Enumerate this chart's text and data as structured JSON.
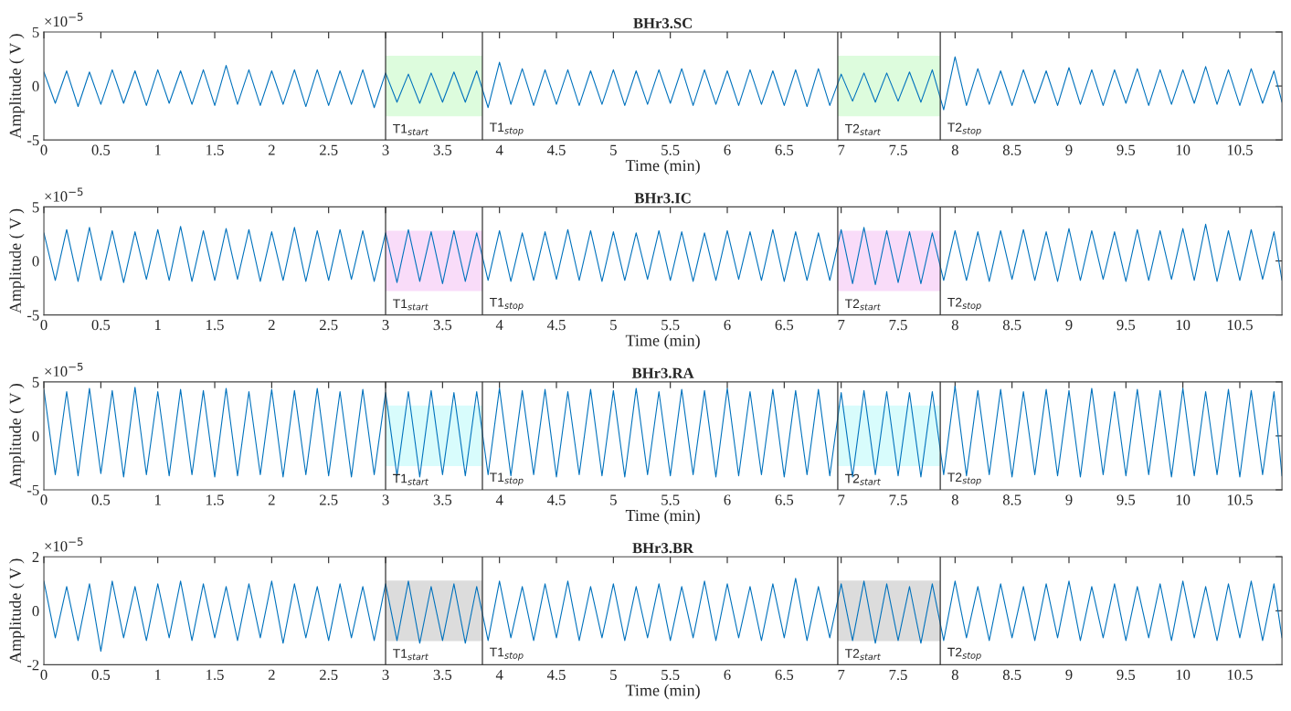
{
  "chart_data": [
    {
      "type": "line",
      "title": "BHr3.SC",
      "xlabel": "Time (min)",
      "ylabel": "Amplitude ( V )",
      "annotations": [
        "×10$^{−5}$"
      ],
      "x": [
        0,
        0.1,
        0.2,
        0.3,
        0.4,
        0.5,
        0.6,
        0.7,
        0.8,
        0.9,
        1.0,
        1.1,
        1.2,
        1.3,
        1.4,
        1.5,
        1.6,
        1.7,
        1.8,
        1.9,
        2.0,
        2.1,
        2.2,
        2.3,
        2.4,
        2.5,
        2.6,
        2.7,
        2.8,
        2.9,
        3.0,
        3.1,
        3.2,
        3.3,
        3.4,
        3.5,
        3.6,
        3.7,
        3.8,
        3.9,
        4.0,
        4.1,
        4.2,
        4.3,
        4.4,
        4.5,
        4.6,
        4.7,
        4.8,
        4.9,
        5.0,
        5.1,
        5.2,
        5.3,
        5.4,
        5.5,
        5.6,
        5.7,
        5.8,
        5.9,
        6.0,
        6.1,
        6.2,
        6.3,
        6.4,
        6.5,
        6.6,
        6.7,
        6.8,
        6.9,
        7.0,
        7.1,
        7.2,
        7.3,
        7.4,
        7.5,
        7.6,
        7.7,
        7.8,
        7.9,
        8.0,
        8.1,
        8.2,
        8.3,
        8.4,
        8.5,
        8.6,
        8.7,
        8.8,
        8.9,
        9.0,
        9.1,
        9.2,
        9.3,
        9.4,
        9.5,
        9.6,
        9.7,
        9.8,
        9.9,
        10.0,
        10.1,
        10.2,
        10.3,
        10.4,
        10.5,
        10.6,
        10.7,
        10.8,
        10.87
      ],
      "series": [
        {
          "color": "#0072bd",
          "values": [
            1.3,
            -1.6,
            1.4,
            -1.9,
            1.3,
            -1.7,
            1.5,
            -1.6,
            1.4,
            -1.8,
            1.5,
            -1.6,
            1.4,
            -1.7,
            1.5,
            -1.8,
            1.9,
            -1.7,
            1.5,
            -1.8,
            1.4,
            -1.7,
            1.5,
            -1.9,
            1.5,
            -1.8,
            1.4,
            -1.7,
            1.5,
            -2.0,
            1.2,
            -1.5,
            1.1,
            -1.6,
            1.2,
            -1.5,
            1.3,
            -1.5,
            1.4,
            -2.0,
            2.2,
            -1.7,
            1.6,
            -1.8,
            1.5,
            -1.7,
            1.5,
            -1.8,
            1.4,
            -1.7,
            1.5,
            -1.8,
            1.4,
            -1.7,
            1.5,
            -1.6,
            1.6,
            -1.8,
            1.5,
            -1.7,
            1.4,
            -1.8,
            1.5,
            -1.7,
            1.4,
            -1.8,
            1.5,
            -1.9,
            1.6,
            -1.8,
            1.1,
            -1.4,
            1.2,
            -1.5,
            1.2,
            -1.4,
            1.3,
            -1.5,
            1.5,
            -2.2,
            2.7,
            -1.8,
            1.6,
            -1.7,
            1.4,
            -1.8,
            1.5,
            -1.6,
            1.4,
            -1.8,
            1.7,
            -1.7,
            1.5,
            -1.8,
            1.5,
            -1.6,
            1.6,
            -1.8,
            1.5,
            -1.7,
            1.5,
            -1.6,
            1.8,
            -1.7,
            1.5,
            -1.8,
            1.6,
            -1.6,
            1.4,
            -1.5
          ]
        }
      ],
      "xlim": [
        0,
        10.87
      ],
      "xticks": [
        0,
        0.5,
        1,
        1.5,
        2,
        2.5,
        3,
        3.5,
        4,
        4.5,
        5,
        5.5,
        6,
        6.5,
        7,
        7.5,
        8,
        8.5,
        9,
        9.5,
        10,
        10.5
      ],
      "ylim": [
        -5,
        5
      ],
      "yticks": [
        -5,
        0,
        5
      ],
      "bands": [
        {
          "axis": "x",
          "from": 3.0,
          "to": 3.85,
          "color": "#ddfcdd"
        },
        {
          "axis": "x",
          "from": 6.97,
          "to": 7.87,
          "color": "#ddfcdd"
        }
      ],
      "ref_lines": [
        {
          "axis": "x",
          "value": 3.0,
          "label": "T1$_{start}$"
        },
        {
          "axis": "x",
          "value": 3.85,
          "label": "T1$_{stop}$"
        },
        {
          "axis": "x",
          "value": 6.97,
          "label": "T2$_{start}$"
        },
        {
          "axis": "x",
          "value": 7.87,
          "label": "T2$_{stop}$"
        }
      ]
    },
    {
      "type": "line",
      "title": "BHr3.IC",
      "xlabel": "Time (min)",
      "ylabel": "Amplitude ( V )",
      "annotations": [
        "×10$^{−5}$"
      ],
      "x": [
        0,
        0.1,
        0.2,
        0.3,
        0.4,
        0.5,
        0.6,
        0.7,
        0.8,
        0.9,
        1.0,
        1.1,
        1.2,
        1.3,
        1.4,
        1.5,
        1.6,
        1.7,
        1.8,
        1.9,
        2.0,
        2.1,
        2.2,
        2.3,
        2.4,
        2.5,
        2.6,
        2.7,
        2.8,
        2.9,
        3.0,
        3.1,
        3.2,
        3.3,
        3.4,
        3.5,
        3.6,
        3.7,
        3.8,
        3.9,
        4.0,
        4.1,
        4.2,
        4.3,
        4.4,
        4.5,
        4.6,
        4.7,
        4.8,
        4.9,
        5.0,
        5.1,
        5.2,
        5.3,
        5.4,
        5.5,
        5.6,
        5.7,
        5.8,
        5.9,
        6.0,
        6.1,
        6.2,
        6.3,
        6.4,
        6.5,
        6.6,
        6.7,
        6.8,
        6.9,
        7.0,
        7.1,
        7.2,
        7.3,
        7.4,
        7.5,
        7.6,
        7.7,
        7.8,
        7.9,
        8.0,
        8.1,
        8.2,
        8.3,
        8.4,
        8.5,
        8.6,
        8.7,
        8.8,
        8.9,
        9.0,
        9.1,
        9.2,
        9.3,
        9.4,
        9.5,
        9.6,
        9.7,
        9.8,
        9.9,
        10.0,
        10.1,
        10.2,
        10.3,
        10.4,
        10.5,
        10.6,
        10.7,
        10.8,
        10.87
      ],
      "series": [
        {
          "color": "#0072bd",
          "values": [
            2.6,
            -1.8,
            2.9,
            -1.9,
            3.1,
            -1.8,
            2.8,
            -2.0,
            2.7,
            -1.7,
            2.9,
            -1.8,
            3.2,
            -1.9,
            2.8,
            -1.8,
            3.0,
            -1.7,
            2.9,
            -1.9,
            2.7,
            -1.8,
            3.1,
            -1.9,
            2.8,
            -1.8,
            2.9,
            -1.7,
            2.8,
            -1.9,
            2.6,
            -2.0,
            2.9,
            -1.9,
            2.7,
            -2.1,
            2.8,
            -1.9,
            2.6,
            -1.8,
            2.8,
            -1.9,
            2.6,
            -1.8,
            2.7,
            -1.7,
            2.9,
            -1.8,
            2.8,
            -1.9,
            2.7,
            -1.8,
            2.6,
            -1.7,
            2.8,
            -1.8,
            2.7,
            -1.9,
            2.6,
            -1.8,
            2.8,
            -1.7,
            2.7,
            -1.8,
            2.9,
            -1.9,
            2.7,
            -1.8,
            2.6,
            -1.8,
            2.9,
            -2.1,
            3.1,
            -2.2,
            2.8,
            -2.0,
            2.7,
            -2.1,
            2.6,
            -1.8,
            2.8,
            -1.8,
            2.7,
            -1.9,
            2.8,
            -1.7,
            2.9,
            -1.8,
            2.7,
            -1.9,
            3.0,
            -1.8,
            2.8,
            -1.7,
            2.7,
            -1.9,
            2.9,
            -1.8,
            2.8,
            -1.7,
            3.0,
            -1.8,
            3.4,
            -1.9,
            2.8,
            -1.8,
            2.9,
            -1.7,
            2.7,
            -1.8
          ]
        }
      ],
      "xlim": [
        0,
        10.87
      ],
      "xticks": [
        0,
        0.5,
        1,
        1.5,
        2,
        2.5,
        3,
        3.5,
        4,
        4.5,
        5,
        5.5,
        6,
        6.5,
        7,
        7.5,
        8,
        8.5,
        9,
        9.5,
        10,
        10.5
      ],
      "ylim": [
        -5,
        5
      ],
      "yticks": [
        -5,
        0,
        5
      ],
      "bands": [
        {
          "axis": "x",
          "from": 3.0,
          "to": 3.85,
          "color": "#f9dcf9"
        },
        {
          "axis": "x",
          "from": 6.97,
          "to": 7.87,
          "color": "#f9dcf9"
        }
      ],
      "ref_lines": [
        {
          "axis": "x",
          "value": 3.0,
          "label": "T1$_{start}$"
        },
        {
          "axis": "x",
          "value": 3.85,
          "label": "T1$_{stop}$"
        },
        {
          "axis": "x",
          "value": 6.97,
          "label": "T2$_{start}$"
        },
        {
          "axis": "x",
          "value": 7.87,
          "label": "T2$_{stop}$"
        }
      ]
    },
    {
      "type": "line",
      "title": "BHr3.RA",
      "xlabel": "Time (min)",
      "ylabel": "Amplitude ( V )",
      "annotations": [
        "×10$^{−5}$"
      ],
      "x": [
        0,
        0.1,
        0.2,
        0.3,
        0.4,
        0.5,
        0.6,
        0.7,
        0.8,
        0.9,
        1.0,
        1.1,
        1.2,
        1.3,
        1.4,
        1.5,
        1.6,
        1.7,
        1.8,
        1.9,
        2.0,
        2.1,
        2.2,
        2.3,
        2.4,
        2.5,
        2.6,
        2.7,
        2.8,
        2.9,
        3.0,
        3.1,
        3.2,
        3.3,
        3.4,
        3.5,
        3.6,
        3.7,
        3.8,
        3.9,
        4.0,
        4.1,
        4.2,
        4.3,
        4.4,
        4.5,
        4.6,
        4.7,
        4.8,
        4.9,
        5.0,
        5.1,
        5.2,
        5.3,
        5.4,
        5.5,
        5.6,
        5.7,
        5.8,
        5.9,
        6.0,
        6.1,
        6.2,
        6.3,
        6.4,
        6.5,
        6.6,
        6.7,
        6.8,
        6.9,
        7.0,
        7.1,
        7.2,
        7.3,
        7.4,
        7.5,
        7.6,
        7.7,
        7.8,
        7.9,
        8.0,
        8.1,
        8.2,
        8.3,
        8.4,
        8.5,
        8.6,
        8.7,
        8.8,
        8.9,
        9.0,
        9.1,
        9.2,
        9.3,
        9.4,
        9.5,
        9.6,
        9.7,
        9.8,
        9.9,
        10.0,
        10.1,
        10.2,
        10.3,
        10.4,
        10.5,
        10.6,
        10.7,
        10.8,
        10.87
      ],
      "series": [
        {
          "color": "#0072bd",
          "values": [
            4.3,
            -3.6,
            4.1,
            -3.7,
            4.4,
            -3.5,
            4.2,
            -3.8,
            4.5,
            -3.6,
            4.1,
            -3.7,
            4.3,
            -3.6,
            4.2,
            -3.8,
            4.4,
            -3.7,
            4.1,
            -3.6,
            4.3,
            -3.8,
            4.2,
            -3.6,
            4.4,
            -3.7,
            4.1,
            -3.8,
            4.3,
            -3.6,
            4.0,
            -3.7,
            4.1,
            -3.8,
            4.2,
            -3.6,
            4.0,
            -3.7,
            4.1,
            -3.6,
            4.4,
            -3.7,
            4.2,
            -3.6,
            4.3,
            -3.8,
            4.1,
            -3.6,
            4.3,
            -3.7,
            4.2,
            -3.8,
            4.4,
            -3.6,
            4.1,
            -3.7,
            4.3,
            -3.6,
            4.2,
            -3.8,
            4.4,
            -3.7,
            4.1,
            -3.6,
            4.3,
            -3.8,
            4.2,
            -3.6,
            4.3,
            -3.7,
            4.0,
            -3.8,
            4.2,
            -3.6,
            4.1,
            -3.7,
            4.0,
            -3.8,
            4.1,
            -3.6,
            4.6,
            -3.7,
            4.2,
            -3.6,
            4.3,
            -3.8,
            4.1,
            -3.6,
            4.3,
            -3.7,
            4.2,
            -3.8,
            4.4,
            -3.6,
            4.1,
            -3.7,
            4.3,
            -3.6,
            4.2,
            -3.8,
            4.4,
            -3.7,
            4.1,
            -3.6,
            4.3,
            -3.8,
            4.2,
            -3.6,
            4.1,
            -3.7
          ]
        }
      ],
      "xlim": [
        0,
        10.87
      ],
      "xticks": [
        0,
        0.5,
        1,
        1.5,
        2,
        2.5,
        3,
        3.5,
        4,
        4.5,
        5,
        5.5,
        6,
        6.5,
        7,
        7.5,
        8,
        8.5,
        9,
        9.5,
        10,
        10.5
      ],
      "ylim": [
        -5,
        5
      ],
      "yticks": [
        -5,
        0,
        5
      ],
      "bands": [
        {
          "axis": "x",
          "from": 3.0,
          "to": 3.85,
          "color": "#d8fcfc"
        },
        {
          "axis": "x",
          "from": 6.97,
          "to": 7.87,
          "color": "#d8fcfc"
        }
      ],
      "ref_lines": [
        {
          "axis": "x",
          "value": 3.0,
          "label": "T1$_{start}$"
        },
        {
          "axis": "x",
          "value": 3.85,
          "label": "T1$_{stop}$"
        },
        {
          "axis": "x",
          "value": 6.97,
          "label": "T2$_{start}$"
        },
        {
          "axis": "x",
          "value": 7.87,
          "label": "T2$_{stop}$"
        }
      ]
    },
    {
      "type": "line",
      "title": "BHr3.BR",
      "xlabel": "Time (min)",
      "ylabel": "Amplitude ( V )",
      "annotations": [
        "×10$^{−5}$"
      ],
      "x": [
        0,
        0.1,
        0.2,
        0.3,
        0.4,
        0.5,
        0.6,
        0.7,
        0.8,
        0.9,
        1.0,
        1.1,
        1.2,
        1.3,
        1.4,
        1.5,
        1.6,
        1.7,
        1.8,
        1.9,
        2.0,
        2.1,
        2.2,
        2.3,
        2.4,
        2.5,
        2.6,
        2.7,
        2.8,
        2.9,
        3.0,
        3.1,
        3.2,
        3.3,
        3.4,
        3.5,
        3.6,
        3.7,
        3.8,
        3.9,
        4.0,
        4.1,
        4.2,
        4.3,
        4.4,
        4.5,
        4.6,
        4.7,
        4.8,
        4.9,
        5.0,
        5.1,
        5.2,
        5.3,
        5.4,
        5.5,
        5.6,
        5.7,
        5.8,
        5.9,
        6.0,
        6.1,
        6.2,
        6.3,
        6.4,
        6.5,
        6.6,
        6.7,
        6.8,
        6.9,
        7.0,
        7.1,
        7.2,
        7.3,
        7.4,
        7.5,
        7.6,
        7.7,
        7.8,
        7.9,
        8.0,
        8.1,
        8.2,
        8.3,
        8.4,
        8.5,
        8.6,
        8.7,
        8.8,
        8.9,
        9.0,
        9.1,
        9.2,
        9.3,
        9.4,
        9.5,
        9.6,
        9.7,
        9.8,
        9.9,
        10.0,
        10.1,
        10.2,
        10.3,
        10.4,
        10.5,
        10.6,
        10.7,
        10.8,
        10.87
      ],
      "series": [
        {
          "color": "#0072bd",
          "values": [
            1.1,
            -1.0,
            0.9,
            -1.1,
            1.0,
            -1.5,
            1.1,
            -1.0,
            0.9,
            -1.1,
            1.0,
            -1.0,
            1.1,
            -1.1,
            1.0,
            -1.0,
            0.9,
            -1.1,
            1.0,
            -1.0,
            1.1,
            -1.2,
            1.0,
            -1.0,
            0.9,
            -1.1,
            1.0,
            -1.0,
            0.9,
            -1.1,
            1.0,
            -1.1,
            1.1,
            -1.2,
            0.9,
            -1.1,
            1.0,
            -1.2,
            0.9,
            -1.1,
            1.1,
            -1.0,
            0.9,
            -1.1,
            1.0,
            -1.0,
            1.1,
            -1.1,
            0.9,
            -1.0,
            1.0,
            -1.1,
            0.9,
            -1.0,
            1.0,
            -1.1,
            0.9,
            -1.0,
            1.1,
            -1.1,
            1.0,
            -1.0,
            0.9,
            -1.1,
            1.0,
            -1.0,
            1.2,
            -1.1,
            0.9,
            -1.0,
            1.0,
            -1.1,
            1.1,
            -1.2,
            1.0,
            -1.1,
            0.9,
            -1.2,
            1.0,
            -1.1,
            1.1,
            -1.0,
            0.9,
            -1.1,
            1.0,
            -1.0,
            0.9,
            -1.1,
            1.0,
            -1.0,
            1.1,
            -1.1,
            0.9,
            -1.0,
            1.0,
            -1.1,
            0.9,
            -1.0,
            1.0,
            -1.1,
            1.1,
            -1.0,
            0.9,
            -1.1,
            1.0,
            -1.0,
            1.1,
            -1.1,
            1.0,
            -1.0
          ]
        }
      ],
      "xlim": [
        0,
        10.87
      ],
      "xticks": [
        0,
        0.5,
        1,
        1.5,
        2,
        2.5,
        3,
        3.5,
        4,
        4.5,
        5,
        5.5,
        6,
        6.5,
        7,
        7.5,
        8,
        8.5,
        9,
        9.5,
        10,
        10.5
      ],
      "ylim": [
        -2,
        2
      ],
      "yticks": [
        -2,
        0,
        2
      ],
      "bands": [
        {
          "axis": "x",
          "from": 3.0,
          "to": 3.85,
          "color": "#dcdcdc"
        },
        {
          "axis": "x",
          "from": 6.97,
          "to": 7.87,
          "color": "#dcdcdc"
        }
      ],
      "ref_lines": [
        {
          "axis": "x",
          "value": 3.0,
          "label": "T1$_{start}$"
        },
        {
          "axis": "x",
          "value": 3.85,
          "label": "T1$_{stop}$"
        },
        {
          "axis": "x",
          "value": 6.97,
          "label": "T2$_{start}$"
        },
        {
          "axis": "x",
          "value": 7.87,
          "label": "T2$_{stop}$"
        }
      ]
    }
  ]
}
